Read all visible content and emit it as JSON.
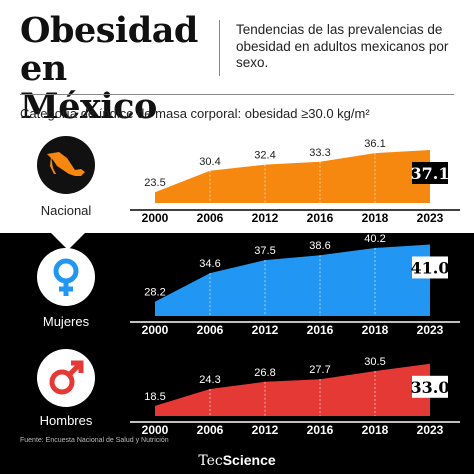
{
  "header": {
    "title_line1": "Obesidad",
    "title_line2": "en México",
    "subtitle": "Tendencias de las prevalencias de obesidad en adultos mexicanos por sexo.",
    "category": "Categoría de índice de masa corporal: obesidad ≥30.0 kg/m²"
  },
  "groups": {
    "nacional": {
      "label": "Nacional",
      "icon": "mexico-map-icon",
      "color": "#f7880f"
    },
    "mujeres": {
      "label": "Mujeres",
      "icon": "female-symbol-icon",
      "color": "#2196f3"
    },
    "hombres": {
      "label": "Hombres",
      "icon": "male-symbol-icon",
      "color": "#e53935"
    }
  },
  "footer": {
    "source": "Fuente: Encuesta Nacional de Salud y Nutrición",
    "brand_part1": "Tec",
    "brand_part2": "Science"
  },
  "chart_data": [
    {
      "type": "area",
      "series": [
        {
          "name": "Nacional",
          "values": [
            23.5,
            30.4,
            32.4,
            33.3,
            36.1,
            37.1
          ]
        }
      ],
      "categories": [
        "2000",
        "2006",
        "2012",
        "2016",
        "2018",
        "2023"
      ],
      "highlight_value": "37.1",
      "color": "#f7880f"
    },
    {
      "type": "area",
      "series": [
        {
          "name": "Mujeres",
          "values": [
            28.2,
            34.6,
            37.5,
            38.6,
            40.2,
            41.0
          ]
        }
      ],
      "categories": [
        "2000",
        "2006",
        "2012",
        "2016",
        "2018",
        "2023"
      ],
      "highlight_value": "41.0",
      "color": "#2196f3"
    },
    {
      "type": "area",
      "series": [
        {
          "name": "Hombres",
          "values": [
            18.5,
            24.3,
            26.8,
            27.7,
            30.5,
            33.0
          ]
        }
      ],
      "categories": [
        "2000",
        "2006",
        "2012",
        "2016",
        "2018",
        "2023"
      ],
      "highlight_value": "33.0",
      "color": "#e53935"
    }
  ]
}
